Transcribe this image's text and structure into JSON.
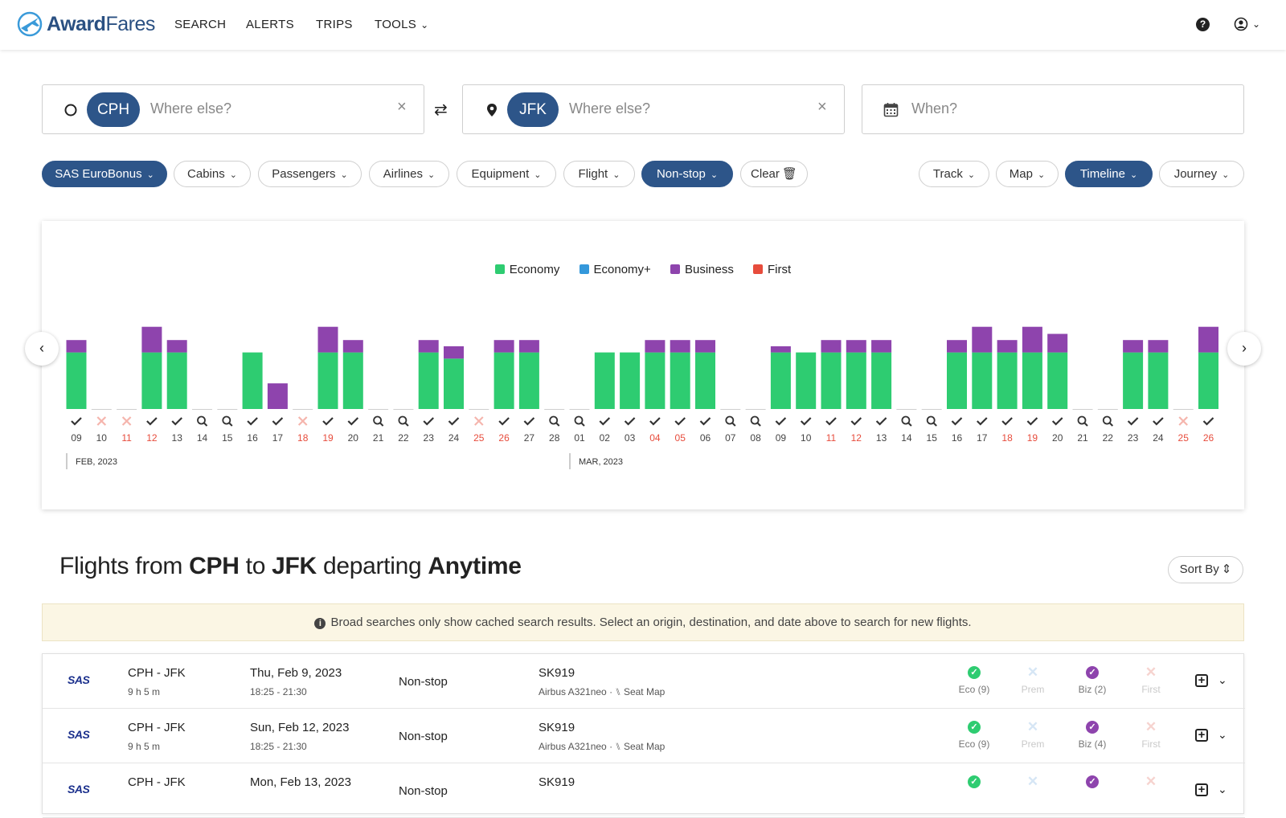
{
  "brand": {
    "name_part1": "Award",
    "name_part2": "Fares"
  },
  "nav": {
    "search": "SEARCH",
    "alerts": "ALERTS",
    "trips": "TRIPS",
    "tools": "TOOLS"
  },
  "origin": {
    "code": "CPH",
    "placeholder": "Where else?"
  },
  "destination": {
    "code": "JFK",
    "placeholder": "Where else?"
  },
  "date_field": {
    "placeholder": "When?"
  },
  "filters": [
    "SAS EuroBonus",
    "Cabins",
    "Passengers",
    "Airlines",
    "Equipment",
    "Flight",
    "Non-stop"
  ],
  "active_filters": [
    "SAS EuroBonus",
    "Non-stop"
  ],
  "clear_label": "Clear",
  "views": [
    "Track",
    "Map",
    "Timeline",
    "Journey"
  ],
  "active_view": "Timeline",
  "colors": {
    "primary": "#2d5589",
    "economy": "#2ecc71",
    "economy_plus": "#3498db",
    "business": "#8e44ad",
    "first": "#e74c3c",
    "weekend": "#e74c3c"
  },
  "chart_data": {
    "type": "bar",
    "legend": [
      "Economy",
      "Economy+",
      "Business",
      "First"
    ],
    "months": [
      {
        "label": "FEB, 2023",
        "start_index": 0
      },
      {
        "label": "MAR, 2023",
        "start_index": 20
      }
    ],
    "days": [
      {
        "d": "09",
        "st": "check",
        "eco": 0.64,
        "biz": 0.14,
        "w": false
      },
      {
        "d": "10",
        "st": "x",
        "eco": 0,
        "biz": 0,
        "w": false
      },
      {
        "d": "11",
        "st": "x",
        "eco": 0,
        "biz": 0,
        "w": true
      },
      {
        "d": "12",
        "st": "check",
        "eco": 0.64,
        "biz": 0.29,
        "w": true
      },
      {
        "d": "13",
        "st": "check",
        "eco": 0.64,
        "biz": 0.14,
        "w": false
      },
      {
        "d": "14",
        "st": "search",
        "eco": 0,
        "biz": 0,
        "w": false
      },
      {
        "d": "15",
        "st": "search",
        "eco": 0,
        "biz": 0,
        "w": false
      },
      {
        "d": "16",
        "st": "check",
        "eco": 0.64,
        "biz": 0,
        "w": false
      },
      {
        "d": "17",
        "st": "check",
        "eco": 0,
        "biz": 0.29,
        "w": false
      },
      {
        "d": "18",
        "st": "x",
        "eco": 0,
        "biz": 0,
        "w": true
      },
      {
        "d": "19",
        "st": "check",
        "eco": 0.64,
        "biz": 0.29,
        "w": true
      },
      {
        "d": "20",
        "st": "check",
        "eco": 0.64,
        "biz": 0.14,
        "w": false
      },
      {
        "d": "21",
        "st": "search",
        "eco": 0,
        "biz": 0,
        "w": false
      },
      {
        "d": "22",
        "st": "search",
        "eco": 0,
        "biz": 0,
        "w": false
      },
      {
        "d": "23",
        "st": "check",
        "eco": 0.64,
        "biz": 0.14,
        "w": false
      },
      {
        "d": "24",
        "st": "check",
        "eco": 0.57,
        "biz": 0.14,
        "w": false
      },
      {
        "d": "25",
        "st": "x",
        "eco": 0,
        "biz": 0,
        "w": true
      },
      {
        "d": "26",
        "st": "check",
        "eco": 0.64,
        "biz": 0.14,
        "w": true
      },
      {
        "d": "27",
        "st": "check",
        "eco": 0.64,
        "biz": 0.14,
        "w": false
      },
      {
        "d": "28",
        "st": "search",
        "eco": 0,
        "biz": 0,
        "w": false
      },
      {
        "d": "01",
        "st": "search",
        "eco": 0,
        "biz": 0,
        "w": false
      },
      {
        "d": "02",
        "st": "check",
        "eco": 0.64,
        "biz": 0,
        "w": false
      },
      {
        "d": "03",
        "st": "check",
        "eco": 0.64,
        "biz": 0,
        "w": false
      },
      {
        "d": "04",
        "st": "check",
        "eco": 0.64,
        "biz": 0.14,
        "w": true
      },
      {
        "d": "05",
        "st": "check",
        "eco": 0.64,
        "biz": 0.14,
        "w": true
      },
      {
        "d": "06",
        "st": "check",
        "eco": 0.64,
        "biz": 0.14,
        "w": false
      },
      {
        "d": "07",
        "st": "search",
        "eco": 0,
        "biz": 0,
        "w": false
      },
      {
        "d": "08",
        "st": "search",
        "eco": 0,
        "biz": 0,
        "w": false
      },
      {
        "d": "09",
        "st": "check",
        "eco": 0.64,
        "biz": 0.07,
        "w": false
      },
      {
        "d": "10",
        "st": "check",
        "eco": 0.64,
        "biz": 0,
        "w": false
      },
      {
        "d": "11",
        "st": "check",
        "eco": 0.64,
        "biz": 0.14,
        "w": true
      },
      {
        "d": "12",
        "st": "check",
        "eco": 0.64,
        "biz": 0.14,
        "w": true
      },
      {
        "d": "13",
        "st": "check",
        "eco": 0.64,
        "biz": 0.14,
        "w": false
      },
      {
        "d": "14",
        "st": "search",
        "eco": 0,
        "biz": 0,
        "w": false
      },
      {
        "d": "15",
        "st": "search",
        "eco": 0,
        "biz": 0,
        "w": false
      },
      {
        "d": "16",
        "st": "check",
        "eco": 0.64,
        "biz": 0.14,
        "w": false
      },
      {
        "d": "17",
        "st": "check",
        "eco": 0.64,
        "biz": 0.29,
        "w": false
      },
      {
        "d": "18",
        "st": "check",
        "eco": 0.64,
        "biz": 0.14,
        "w": true
      },
      {
        "d": "19",
        "st": "check",
        "eco": 0.64,
        "biz": 0.29,
        "w": true
      },
      {
        "d": "20",
        "st": "check",
        "eco": 0.64,
        "biz": 0.21,
        "w": false
      },
      {
        "d": "21",
        "st": "search",
        "eco": 0,
        "biz": 0,
        "w": false
      },
      {
        "d": "22",
        "st": "search",
        "eco": 0,
        "biz": 0,
        "w": false
      },
      {
        "d": "23",
        "st": "check",
        "eco": 0.64,
        "biz": 0.14,
        "w": false
      },
      {
        "d": "24",
        "st": "check",
        "eco": 0.64,
        "biz": 0.14,
        "w": false
      },
      {
        "d": "25",
        "st": "x",
        "eco": 0,
        "biz": 0,
        "w": true
      },
      {
        "d": "26",
        "st": "check",
        "eco": 0.64,
        "biz": 0.29,
        "w": true
      }
    ]
  },
  "results": {
    "title_prefix": "Flights from",
    "origin": "CPH",
    "to": "to",
    "destination": "JFK",
    "departing": "departing",
    "when": "Anytime",
    "sort_label": "Sort By",
    "notice": "Broad searches only show cached search results. Select an origin, destination, and date above to search for new flights."
  },
  "flights": [
    {
      "airline": "SAS",
      "route": "CPH - JFK",
      "duration": "9 h 5 m",
      "date": "Thu, Feb 9, 2023",
      "times": "18:25 - 21:30",
      "stops": "Non-stop",
      "flight": "SK919",
      "equipment": "Airbus A321neo",
      "seatmap": "Seat Map",
      "eco": "Eco (9)",
      "prem": "Prem",
      "biz": "Biz (2)",
      "first": "First"
    },
    {
      "airline": "SAS",
      "route": "CPH - JFK",
      "duration": "9 h 5 m",
      "date": "Sun, Feb 12, 2023",
      "times": "18:25 - 21:30",
      "stops": "Non-stop",
      "flight": "SK919",
      "equipment": "Airbus A321neo",
      "seatmap": "Seat Map",
      "eco": "Eco (9)",
      "prem": "Prem",
      "biz": "Biz (4)",
      "first": "First"
    },
    {
      "airline": "SAS",
      "route": "CPH - JFK",
      "duration": "",
      "date": "Mon, Feb 13, 2023",
      "times": "",
      "stops": "Non-stop",
      "flight": "SK919",
      "equipment": "",
      "seatmap": "",
      "eco": "",
      "prem": "",
      "biz": "",
      "first": ""
    }
  ]
}
